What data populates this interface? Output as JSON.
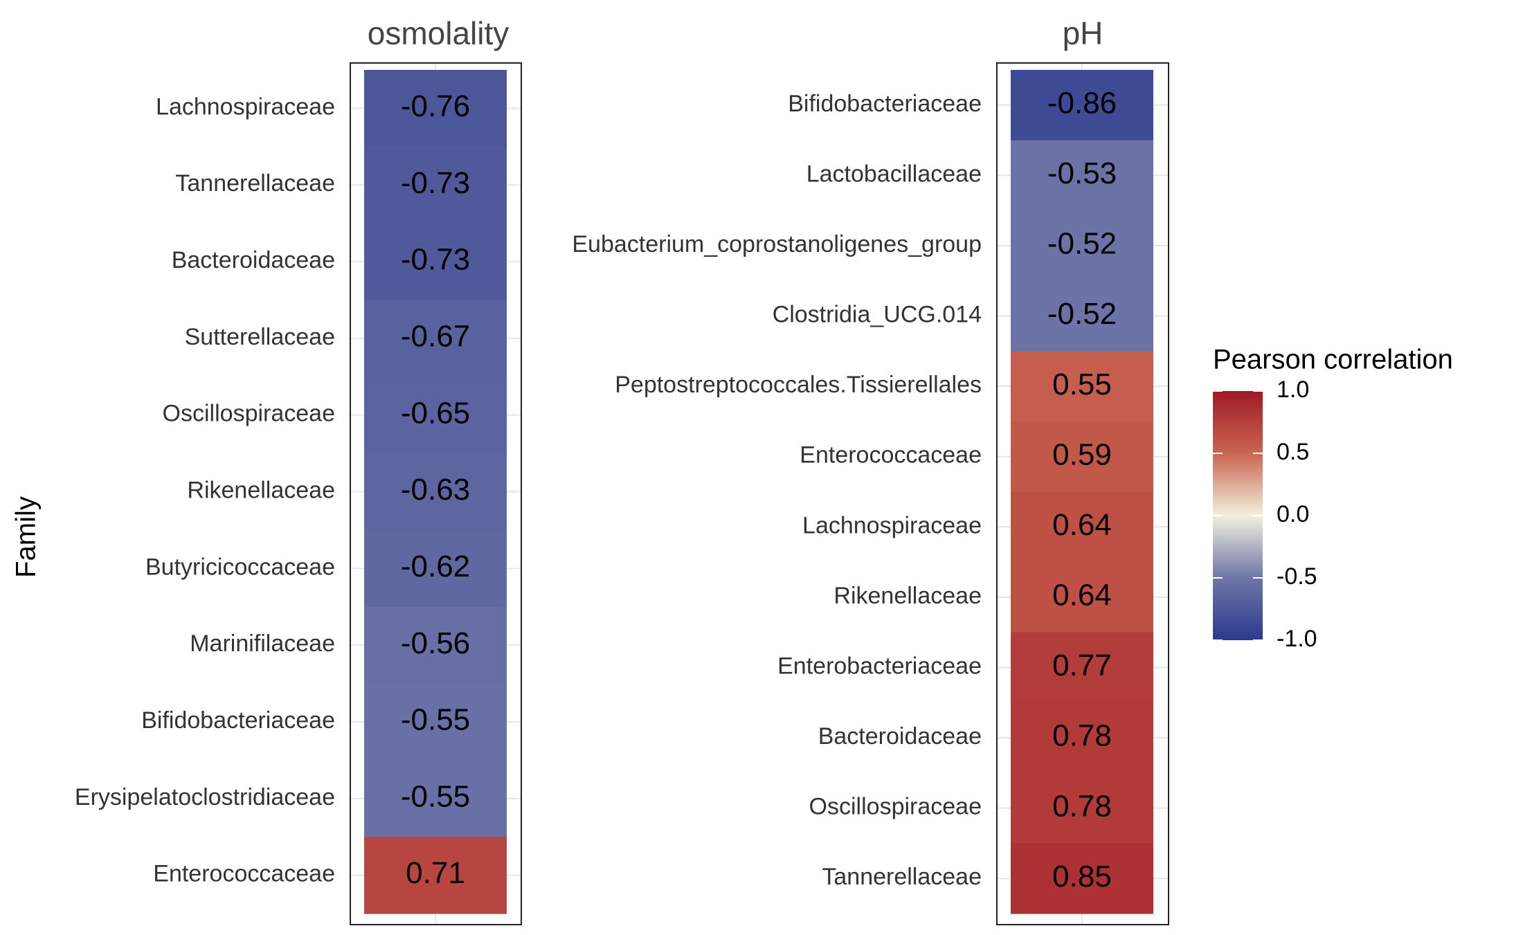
{
  "chart_data": {
    "type": "heatmap",
    "ylabel": "Family",
    "legend": {
      "title": "Pearson correlation",
      "ticks": [
        1.0,
        0.5,
        0.0,
        -0.5,
        -1.0
      ],
      "tick_labels": [
        "1.0",
        "0.5",
        "0.0",
        "-0.5",
        "-1.0"
      ],
      "range": [
        -1.0,
        1.0
      ],
      "colors": {
        "low": "#2b3a8c",
        "mid": "#f1f1dc",
        "high": "#a01a26"
      },
      "placement": "right"
    },
    "panels": [
      {
        "title": "osmolality",
        "families": [
          "Lachnospiraceae",
          "Tannerellaceae",
          "Bacteroidaceae",
          "Sutterellaceae",
          "Oscillospiraceae",
          "Rikenellaceae",
          "Butyricicoccaceae",
          "Marinifilaceae",
          "Bifidobacteriaceae",
          "Erysipelatoclostridiaceae",
          "Enterococcaceae"
        ],
        "values": [
          -0.76,
          -0.73,
          -0.73,
          -0.67,
          -0.65,
          -0.63,
          -0.62,
          -0.56,
          -0.55,
          -0.55,
          0.71
        ],
        "labels": [
          "-0.76",
          "-0.73",
          "-0.73",
          "-0.67",
          "-0.65",
          "-0.63",
          "-0.62",
          "-0.56",
          "-0.55",
          "-0.55",
          "0.71"
        ]
      },
      {
        "title": "pH",
        "families": [
          "Bifidobacteriaceae",
          "Lactobacillaceae",
          "Eubacterium_coprostanoligenes_group",
          "Clostridia_UCG.014",
          "Peptostreptococcales.Tissierellales",
          "Enterococcaceae",
          "Lachnospiraceae",
          "Rikenellaceae",
          "Enterobacteriaceae",
          "Bacteroidaceae",
          "Oscillospiraceae",
          "Tannerellaceae"
        ],
        "values": [
          -0.86,
          -0.53,
          -0.52,
          -0.52,
          0.55,
          0.59,
          0.64,
          0.64,
          0.77,
          0.78,
          0.78,
          0.85
        ],
        "labels": [
          "-0.86",
          "-0.53",
          "-0.52",
          "-0.52",
          "0.55",
          "0.59",
          "0.64",
          "0.64",
          "0.77",
          "0.78",
          "0.78",
          "0.85"
        ]
      }
    ]
  }
}
